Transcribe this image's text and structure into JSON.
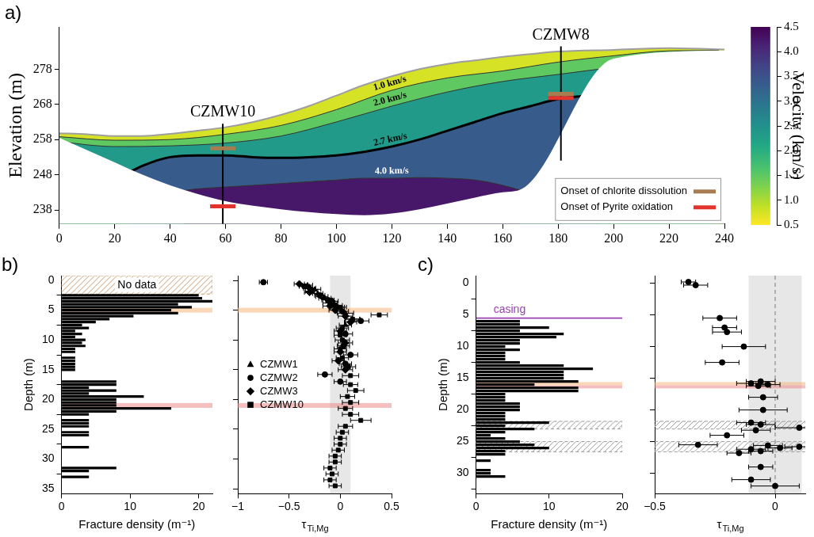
{
  "chart_data": [
    {
      "panel_label": "a)",
      "type": "velocity_section",
      "ylabel": "Elevation (m)",
      "xlim": [
        0,
        240
      ],
      "xticks": [
        0,
        20,
        40,
        60,
        80,
        100,
        120,
        140,
        160,
        180,
        200,
        220,
        240
      ],
      "ylim": [
        234,
        290
      ],
      "yticks": [
        238,
        248,
        258,
        268,
        278
      ],
      "grid": false,
      "surface": {
        "x": [
          0,
          10,
          20,
          30,
          40,
          50,
          60,
          70,
          80,
          90,
          100,
          110,
          120,
          130,
          140,
          150,
          160,
          170,
          180,
          200,
          220,
          240
        ],
        "y": [
          259.8,
          259.5,
          259.0,
          259.0,
          259.6,
          260.5,
          261.5,
          263.0,
          265.0,
          267.5,
          270.5,
          273.5,
          276.0,
          278.0,
          279.5,
          280.5,
          281.5,
          282.3,
          283.0,
          283.5,
          284.0,
          283.6
        ]
      },
      "base": {
        "x": [
          0,
          10,
          20,
          30,
          40,
          50,
          60,
          70,
          80,
          90,
          100,
          110,
          120,
          130,
          140,
          150,
          160,
          167,
          200,
          240
        ],
        "y": [
          258.5,
          255.0,
          251.5,
          248.0,
          245.0,
          242.5,
          240.5,
          239.2,
          238.2,
          237.4,
          236.8,
          236.5,
          237.0,
          238.2,
          239.8,
          241.5,
          243.0,
          244.0,
          281.0,
          283.3
        ]
      },
      "contours": [
        {
          "level": 1.0,
          "label": "1.0 km/s",
          "line_style": "thin",
          "x": [
            0,
            20,
            40,
            60,
            80,
            100,
            120,
            140,
            160,
            180,
            200,
            220,
            238
          ],
          "y": [
            258.8,
            257.8,
            258.0,
            259.5,
            262.0,
            266.5,
            272.0,
            275.5,
            277.5,
            280.0,
            281.8,
            283.2,
            283.3
          ]
        },
        {
          "level": 2.0,
          "label": "2.0 km/s",
          "line_style": "thin",
          "x": [
            0,
            10,
            20,
            40,
            60,
            80,
            100,
            120,
            140,
            160,
            180,
            200,
            220,
            238
          ],
          "y": [
            257.5,
            256.5,
            256.0,
            256.2,
            257.0,
            259.0,
            263.0,
            267.5,
            271.5,
            274.5,
            276.5,
            278.5,
            280.0,
            281.5
          ]
        },
        {
          "level": 2.7,
          "label": "2.7 km/s",
          "line_style": "thick",
          "x": [
            26,
            30,
            35,
            40,
            50,
            60,
            70,
            80,
            90,
            100,
            110,
            120,
            130,
            140,
            150,
            160,
            170,
            180,
            190,
            195
          ],
          "y": [
            249.0,
            250.5,
            252.0,
            253.0,
            253.5,
            253.5,
            253.0,
            252.8,
            253.0,
            253.5,
            254.5,
            256.0,
            258.0,
            260.5,
            263.0,
            265.5,
            267.5,
            269.5,
            270.5,
            271.0
          ]
        },
        {
          "level": 4.0,
          "label": "4.0 km/s",
          "line_style": "thin",
          "x": [
            45,
            50,
            60,
            70,
            80,
            90,
            100,
            110,
            120,
            130,
            140,
            150,
            160,
            166
          ],
          "y": [
            243.5,
            244.0,
            244.5,
            245.0,
            245.5,
            246.0,
            246.5,
            247.0,
            247.0,
            247.2,
            247.0,
            246.5,
            245.0,
            243.7
          ]
        }
      ],
      "wells": [
        {
          "name": "CZMW10",
          "x": [
            59,
            59
          ],
          "y": [
            262.5,
            234
          ]
        },
        {
          "name": "CZMW8",
          "x": [
            181,
            181
          ],
          "y": [
            284.5,
            252
          ]
        }
      ],
      "series": [
        {
          "name": "Onset of chlorite dissolution",
          "color": "#a97c50",
          "marker": "line",
          "x": [
            59,
            181
          ],
          "y": [
            255.5,
            271.0
          ]
        },
        {
          "name": "Onset of Pyrite oxidation",
          "color": "#e2342c",
          "marker": "line",
          "x": [
            59,
            181
          ],
          "y": [
            239.0,
            269.8
          ]
        }
      ],
      "legend": "lower right",
      "colorbar": {
        "label": "Velocity (km/s)",
        "range": [
          0.5,
          4.5
        ],
        "ticks": [
          0.5,
          {
            "value": 1,
            "label": "1.0"
          },
          1.5,
          {
            "value": 2,
            "label": "2.0"
          },
          2.5,
          {
            "value": 3,
            "label": "3.0"
          },
          3.5,
          {
            "value": 4,
            "label": "4.0"
          },
          4.5
        ]
      }
    },
    {
      "panel_label": "b)",
      "type": "bar",
      "orientation": "horizontal",
      "xlabel": "Fracture density (m⁻¹)",
      "ylabel": "Depth (m)",
      "xlim": [
        0,
        22
      ],
      "xticks": [
        0,
        10,
        20
      ],
      "ylim": [
        35.8,
        -0.8
      ],
      "yticks": [
        0,
        5,
        10,
        15,
        20,
        25,
        30,
        35
      ],
      "grid": false,
      "color": "#000000",
      "depth": [
        2.5,
        3,
        3.5,
        4,
        4.5,
        5,
        5.5,
        6,
        6.5,
        7,
        7.5,
        8,
        8.5,
        9,
        9.5,
        10,
        10.5,
        11,
        11.5,
        12,
        13,
        13.5,
        14,
        14.5,
        15,
        17,
        17.5,
        18,
        18.5,
        19,
        19.5,
        20,
        20.5,
        21,
        21.5,
        22,
        22.5,
        23.5,
        24,
        24.5,
        25.5,
        26,
        28,
        31.5,
        32,
        33
      ],
      "values": [
        20,
        20.5,
        22,
        17,
        19,
        16,
        17,
        10.5,
        7,
        5,
        3,
        4,
        2,
        3,
        2,
        3.5,
        3,
        3.5,
        2,
        2,
        2,
        2,
        2,
        2,
        2,
        8,
        8,
        4,
        8,
        4,
        12,
        8,
        8,
        8,
        16,
        8,
        4,
        4,
        4,
        4,
        4,
        4,
        4,
        8,
        4,
        4
      ],
      "hatched_bands": [
        {
          "axis": "y",
          "from": -0.8,
          "to": 2.3,
          "label": "No data",
          "color": "#c49a6c"
        }
      ],
      "bands": [
        {
          "axis": "y",
          "from": 4.6,
          "to": 5.4,
          "color": "#f5b77a"
        },
        {
          "axis": "y",
          "from": 20.6,
          "to": 21.4,
          "color": "#ee8a8a"
        }
      ]
    },
    {
      "type": "scatter",
      "xlabel": {
        "text": "τ",
        "subscript": "Ti,Mg"
      },
      "xlim": [
        -1,
        0.5
      ],
      "xticks": [
        {
          "value": -1,
          "label": "−1"
        },
        {
          "value": -0.5,
          "label": "−0.5"
        },
        0,
        0.5
      ],
      "ylim": [
        35.8,
        -0.8
      ],
      "yticks": [
        0,
        5,
        10,
        15,
        20,
        25,
        30,
        35
      ],
      "grid": false,
      "tick_labels": "x",
      "legend": "middle left",
      "bands": [
        {
          "axis": "x",
          "from": -0.1,
          "to": 0.1,
          "color": "#d4d4d4"
        },
        {
          "axis": "y",
          "from": 4.6,
          "to": 5.4,
          "color": "#f5b77a"
        },
        {
          "axis": "y",
          "from": 20.6,
          "to": 21.4,
          "color": "#ee8a8a"
        }
      ],
      "series": [
        {
          "name": "CZMW1",
          "marker": "triangle",
          "color": "#000000",
          "y": [
            0.8,
            1.5,
            2.2,
            3.0,
            3.8,
            4.5,
            5.5,
            6.5,
            7.5
          ],
          "x": [
            -0.32,
            -0.25,
            -0.22,
            -0.15,
            -0.1,
            -0.02,
            0.05,
            0.12,
            0.05
          ],
          "xerr": [
            0.05,
            0.06,
            0.05,
            0.06,
            0.07,
            0.06,
            0.08,
            0.07,
            0.06
          ]
        },
        {
          "name": "CZMW2",
          "marker": "circle",
          "color": "#000000",
          "y": [
            0.3,
            1.0,
            1.8,
            2.5,
            3.3,
            4.2,
            5.2,
            6.8,
            9.0,
            11.0,
            12.5,
            14.0,
            15.8,
            17.0
          ],
          "x": [
            -0.75,
            -0.35,
            -0.28,
            -0.2,
            -0.12,
            -0.05,
            0.02,
            0.2,
            0.05,
            0.03,
            0.1,
            0.05,
            -0.15,
            0.0
          ],
          "xerr": [
            0.04,
            0.05,
            0.06,
            0.05,
            0.06,
            0.07,
            0.06,
            0.08,
            0.07,
            0.06,
            0.07,
            0.06,
            0.07,
            0.06
          ]
        },
        {
          "name": "CZMW3",
          "marker": "diamond",
          "color": "#000000",
          "y": [
            0.6,
            1.3,
            2.0,
            2.7,
            3.5,
            4.3,
            5.0,
            6.0,
            7.0,
            8.5,
            10.5,
            12.0,
            13.5,
            15.0
          ],
          "x": [
            -0.4,
            -0.3,
            -0.3,
            -0.18,
            -0.08,
            -0.1,
            -0.05,
            0.05,
            0.1,
            0.0,
            0.05,
            0.0,
            -0.02,
            0.05
          ],
          "xerr": [
            0.05,
            0.06,
            0.05,
            0.06,
            0.06,
            0.07,
            0.06,
            0.07,
            0.06,
            0.06,
            0.07,
            0.06,
            0.06,
            0.07
          ]
        },
        {
          "name": "CZMW10",
          "marker": "square",
          "color": "#000000",
          "y": [
            4.5,
            5.8,
            6.5,
            8.0,
            9.2,
            10.0,
            11.5,
            13.0,
            14.5,
            16.0,
            17.5,
            18.5,
            19.5,
            20.5,
            21.5,
            22.5,
            23.5,
            24.5,
            25.5,
            26.5,
            27.5,
            28.5,
            29.5,
            30.5,
            31.5,
            32.5,
            33.5,
            34.5
          ],
          "x": [
            0.0,
            0.38,
            0.12,
            0.02,
            0.0,
            0.02,
            0.0,
            0.02,
            0.08,
            0.1,
            0.1,
            0.15,
            0.07,
            0.1,
            0.05,
            0.1,
            0.2,
            0.05,
            0.02,
            0.0,
            0.0,
            -0.02,
            -0.05,
            -0.05,
            -0.1,
            -0.08,
            -0.1,
            -0.05
          ],
          "xerr": [
            0.06,
            0.08,
            0.07,
            0.06,
            0.06,
            0.07,
            0.06,
            0.06,
            0.07,
            0.08,
            0.07,
            0.08,
            0.07,
            0.08,
            0.07,
            0.08,
            0.1,
            0.07,
            0.06,
            0.06,
            0.06,
            0.06,
            0.06,
            0.06,
            0.06,
            0.06,
            0.06,
            0.06
          ]
        }
      ]
    },
    {
      "panel_label": "c)",
      "type": "bar",
      "orientation": "horizontal",
      "xlabel": "Fracture density (m⁻¹)",
      "ylabel": "Depth (m)",
      "xlim": [
        0,
        20
      ],
      "xticks": [
        0,
        10,
        20
      ],
      "ylim": [
        33.2,
        -1.2
      ],
      "yticks": [
        0,
        5,
        10,
        15,
        20,
        25,
        30
      ],
      "grid": false,
      "color": "#000000",
      "depth": [
        6,
        6.5,
        7,
        7.5,
        8,
        8.5,
        9,
        9.5,
        10,
        10.5,
        11,
        11.5,
        12,
        12.5,
        13,
        13.5,
        14,
        14.5,
        15,
        15.5,
        16,
        16.5,
        17,
        17.5,
        18,
        18.5,
        19,
        19.5,
        20,
        20.5,
        21,
        21.5,
        22,
        22.5,
        23,
        23.5,
        24,
        24.5,
        25,
        25.5,
        26,
        26.5,
        27,
        28,
        29.5,
        30,
        30.5
      ],
      "values": [
        6,
        6,
        10,
        6,
        12,
        11,
        6,
        6,
        4,
        6,
        4,
        4,
        4,
        6,
        12,
        16,
        12,
        12,
        12,
        14,
        8,
        14,
        14,
        4,
        4,
        4,
        6,
        6,
        6,
        4,
        4,
        4,
        10,
        4,
        8,
        4,
        2,
        4,
        6,
        8,
        10,
        4,
        4,
        2,
        2,
        2,
        4
      ],
      "lines": [
        {
          "axis": "y",
          "value": 5.5,
          "label": "casing",
          "color": "#9b3fb5",
          "line_style": "solid"
        }
      ],
      "hatched_bands": [
        {
          "axis": "y",
          "from": 21.8,
          "to": 23.0,
          "color": "#9a9a9a"
        },
        {
          "axis": "y",
          "from": 25.0,
          "to": 26.6,
          "color": "#9a9a9a"
        }
      ],
      "bands": [
        {
          "axis": "y",
          "from": 15.6,
          "to": 16.1,
          "color": "#f5b77a"
        },
        {
          "axis": "y",
          "from": 16.1,
          "to": 16.6,
          "color": "#ee8a8a"
        }
      ]
    },
    {
      "type": "scatter",
      "xlabel": {
        "text": "τ",
        "subscript": "Ti,Mg"
      },
      "xlim": [
        -0.5,
        0.125
      ],
      "xticks": [
        {
          "value": -0.5,
          "label": "−0.5"
        },
        0
      ],
      "ylim": [
        33.2,
        -1.2
      ],
      "yticks": [
        0,
        5,
        10,
        15,
        20,
        25,
        30
      ],
      "grid": false,
      "tick_labels": "x",
      "lines": [
        {
          "axis": "x",
          "value": 0,
          "color": "#8a8a8a",
          "line_style": "dashed"
        }
      ],
      "hatched_bands": [
        {
          "axis": "y",
          "from": 21.8,
          "to": 23.0,
          "color": "#9a9a9a"
        },
        {
          "axis": "y",
          "from": 25.0,
          "to": 26.6,
          "color": "#9a9a9a"
        }
      ],
      "bands": [
        {
          "axis": "x",
          "from": -0.11,
          "to": 0.11,
          "color": "#d4d4d4"
        },
        {
          "axis": "y",
          "from": 15.6,
          "to": 16.1,
          "color": "#f5b77a"
        },
        {
          "axis": "y",
          "from": 16.1,
          "to": 16.6,
          "color": "#ee8a8a"
        }
      ],
      "series": [
        {
          "marker": "circle",
          "color": "#000000",
          "y": [
            -0.2,
            0.3,
            5.5,
            7.0,
            7.7,
            10.0,
            12.5,
            15.5,
            15.8,
            16.0,
            16.2,
            18.0,
            20.0,
            22.0,
            22.3,
            22.8,
            23.2,
            24.0,
            25.5,
            25.6,
            25.8,
            26.0,
            26.2,
            26.5,
            26.8,
            29.0,
            31.0,
            32.0
          ],
          "x": [
            -0.36,
            -0.33,
            -0.23,
            -0.21,
            -0.2,
            -0.13,
            -0.22,
            -0.06,
            -0.1,
            -0.03,
            -0.07,
            -0.05,
            -0.05,
            -0.1,
            -0.06,
            0.1,
            -0.08,
            -0.2,
            -0.32,
            -0.03,
            0.1,
            0.02,
            -0.1,
            -0.06,
            -0.15,
            -0.06,
            -0.1,
            0.0
          ],
          "xerr": [
            0.03,
            0.05,
            0.07,
            0.05,
            0.06,
            0.09,
            0.07,
            0.06,
            0.06,
            0.05,
            0.05,
            0.06,
            0.1,
            0.06,
            0.06,
            0.1,
            0.06,
            0.07,
            0.08,
            0.06,
            0.06,
            0.05,
            0.06,
            0.05,
            0.05,
            0.05,
            0.08,
            0.1
          ]
        }
      ]
    }
  ]
}
